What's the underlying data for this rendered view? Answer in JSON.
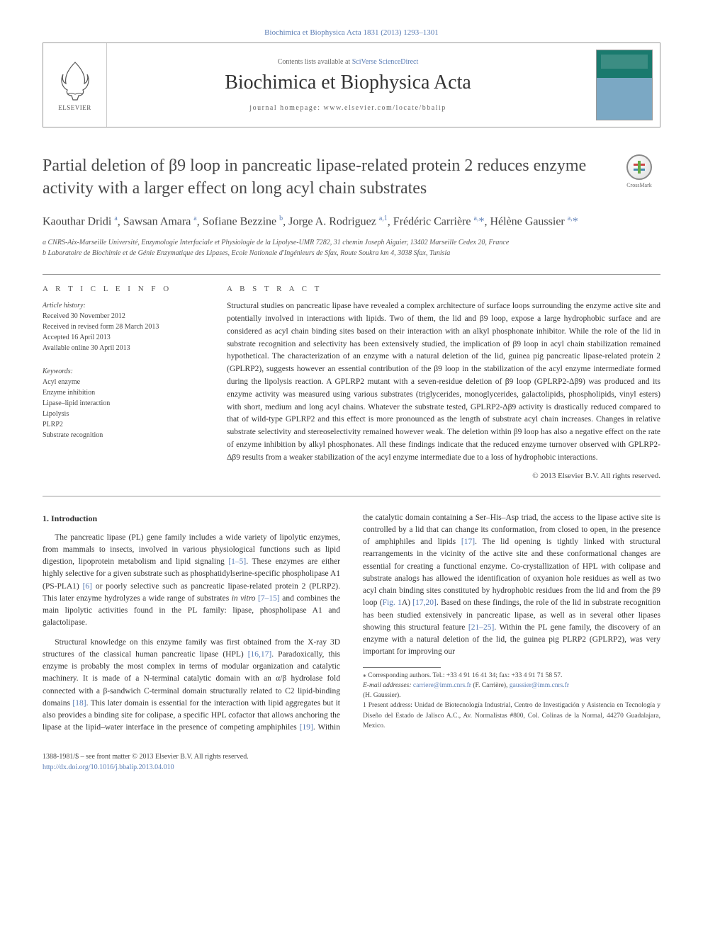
{
  "journal_ref": "Biochimica et Biophysica Acta 1831 (2013) 1293–1301",
  "header": {
    "contents_pre": "Contents lists available at ",
    "contents_link": "SciVerse ScienceDirect",
    "journal_title": "Biochimica et Biophysica Acta",
    "homepage_pre": "journal homepage: ",
    "homepage_link": "www.elsevier.com/locate/bbalip",
    "publisher": "ELSEVIER"
  },
  "crossmark_label": "CrossMark",
  "article": {
    "title": "Partial deletion of β9 loop in pancreatic lipase-related protein 2 reduces enzyme activity with a larger effect on long acyl chain substrates",
    "authors_html": "Kaouthar Dridi <sup><a>a</a></sup>, Sawsan Amara <sup><a>a</a></sup>, Sofiane Bezzine <sup><a>b</a></sup>, Jorge A. Rodriguez <sup><a>a,1</a></sup>, Frédéric Carrière <sup><a>a,</a></sup><a>*</a>, Hélène Gaussier <sup><a>a,</a></sup><a>*</a>",
    "affiliations": {
      "a": "a CNRS-Aix-Marseille Université, Enzymologie Interfaciale et Physiologie de la Lipolyse-UMR 7282, 31 chemin Joseph Aiguier, 13402 Marseille Cedex 20, France",
      "b": "b Laboratoire de Biochimie et de Génie Enzymatique des Lipases, Ecole Nationale d'Ingénieurs de Sfax, Route Soukra km 4, 3038 Sfax, Tunisia"
    }
  },
  "info": {
    "label": "A R T I C L E   I N F O",
    "history_head": "Article history:",
    "history": [
      "Received 30 November 2012",
      "Received in revised form 28 March 2013",
      "Accepted 16 April 2013",
      "Available online 30 April 2013"
    ],
    "keywords_head": "Keywords:",
    "keywords": [
      "Acyl enzyme",
      "Enzyme inhibition",
      "Lipase–lipid interaction",
      "Lipolysis",
      "PLRP2",
      "Substrate recognition"
    ]
  },
  "abstract": {
    "label": "A B S T R A C T",
    "text": "Structural studies on pancreatic lipase have revealed a complex architecture of surface loops surrounding the enzyme active site and potentially involved in interactions with lipids. Two of them, the lid and β9 loop, expose a large hydrophobic surface and are considered as acyl chain binding sites based on their interaction with an alkyl phosphonate inhibitor. While the role of the lid in substrate recognition and selectivity has been extensively studied, the implication of β9 loop in acyl chain stabilization remained hypothetical. The characterization of an enzyme with a natural deletion of the lid, guinea pig pancreatic lipase-related protein 2 (GPLRP2), suggests however an essential contribution of the β9 loop in the stabilization of the acyl enzyme intermediate formed during the lipolysis reaction. A GPLRP2 mutant with a seven-residue deletion of β9 loop (GPLRP2-Δβ9) was produced and its enzyme activity was measured using various substrates (triglycerides, monoglycerides, galactolipids, phospholipids, vinyl esters) with short, medium and long acyl chains. Whatever the substrate tested, GPLRP2-Δβ9 activity is drastically reduced compared to that of wild-type GPLRP2 and this effect is more pronounced as the length of substrate acyl chain increases. Changes in relative substrate selectivity and stereoselectivity remained however weak. The deletion within β9 loop has also a negative effect on the rate of enzyme inhibition by alkyl phosphonates. All these findings indicate that the reduced enzyme turnover observed with GPLRP2-Δβ9 results from a weaker stabilization of the acyl enzyme intermediate due to a loss of hydrophobic interactions.",
    "copyright": "© 2013 Elsevier B.V. All rights reserved."
  },
  "intro": {
    "heading": "1. Introduction",
    "p1_html": "The pancreatic lipase (PL) gene family includes a wide variety of lipolytic enzymes, from mammals to insects, involved in various physiological functions such as lipid digestion, lipoprotein metabolism and lipid signaling <a>[1–5]</a>. These enzymes are either highly selective for a given substrate such as phosphatidylserine-specific phospholipase A1 (PS-PLA1) <a>[6]</a> or poorly selective such as pancreatic lipase-related protein 2 (PLRP2). This later enzyme hydrolyzes a wide range of substrates <i>in vitro</i> <a>[7–15]</a> and combines the main lipolytic activities found in the PL family: lipase, phospholipase A1 and galactolipase.",
    "p2_html": "Structural knowledge on this enzyme family was first obtained from the X-ray 3D structures of the classical human pancreatic lipase (HPL) <a>[16,17]</a>. Paradoxically, this enzyme is probably the most complex in terms of modular organization and catalytic machinery. It is made of a N-terminal catalytic domain with an α/β hydrolase fold connected with a β-sandwich C-terminal domain structurally related to C2 lipid-binding domains <a>[18]</a>. This later domain is essential for the interaction with lipid aggregates but it also provides a binding site for colipase, a specific HPL cofactor that allows anchoring the lipase at the lipid–water interface in the presence of competing amphiphiles <a>[19]</a>. Within the catalytic domain containing a Ser–His–Asp triad, the access to the lipase active site is controlled by a lid that can change its conformation, from closed to open, in the presence of amphiphiles and lipids <a>[17]</a>. The lid opening is tightly linked with structural rearrangements in the vicinity of the active site and these conformational changes are essential for creating a functional enzyme. Co-crystallization of HPL with colipase and substrate analogs has allowed the identification of oxyanion hole residues as well as two acyl chain binding sites constituted by hydrophobic residues from the lid and from the β9 loop (<a>Fig. 1</a>A) <a>[17,20]</a>. Based on these findings, the role of the lid in substrate recognition has been studied extensively in pancreatic lipase, as well as in several other lipases showing this structural feature <a>[21–25]</a>. Within the PL gene family, the discovery of an enzyme with a natural deletion of the lid, the guinea pig PLRP2 (GPLRP2), was very important for improving our"
  },
  "footnotes": {
    "corr": "⁎  Corresponding authors. Tel.: +33 4 91 16 41 34; fax: +33 4 91 71 58 57.",
    "email_label": "E-mail addresses: ",
    "email1": "carriere@imm.cnrs.fr",
    "email1_who": " (F. Carrière), ",
    "email2": "gaussier@imm.cnrs.fr",
    "email2_who": "(H. Gaussier).",
    "present": "1  Present address: Unidad de Biotecnología Industrial, Centro de Investigación y Asistencia en Tecnología y Diseño del Estado de Jalisco A.C., Av. Normalistas #800, Col. Colinas de la Normal, 44270 Guadalajara, Mexico."
  },
  "bottom": {
    "issn": "1388-1981/$ – see front matter © 2013 Elsevier B.V. All rights reserved.",
    "doi": "http://dx.doi.org/10.1016/j.bbalip.2013.04.010"
  },
  "colors": {
    "link": "#5a7cb4",
    "text": "#333333",
    "rule": "#999999"
  }
}
